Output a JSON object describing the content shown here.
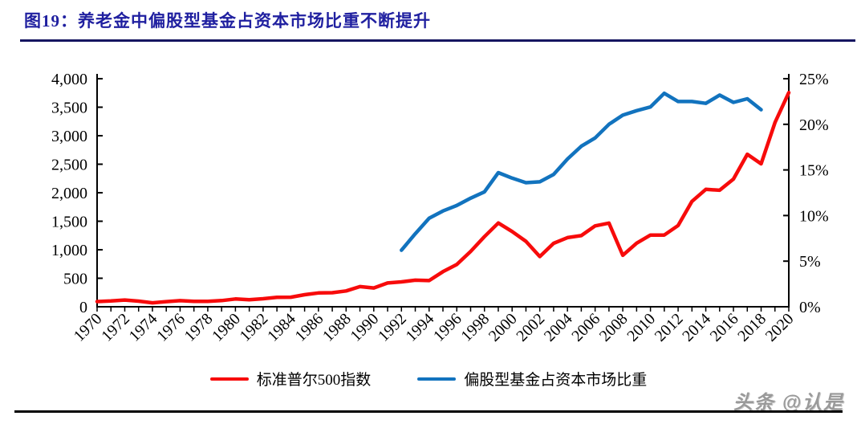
{
  "header": {
    "title": "图19：养老金中偏股型基金占资本市场比重不断提升"
  },
  "watermark": "头条 @认是",
  "colors": {
    "sp500_line": "#F70B0B",
    "ratio_line": "#1273BE",
    "title_text": "#2020A0",
    "title_rule": "#151560",
    "axis": "#000000",
    "watermark": "#9A9A9A"
  },
  "chart_data": {
    "type": "line",
    "title": "",
    "xlabel": "",
    "ylabel_left": "",
    "ylabel_right": "",
    "grid": false,
    "legend_position": "bottom",
    "x_range": [
      1970,
      2020
    ],
    "x_tick_labels": [
      "1970",
      "1972",
      "1974",
      "1976",
      "1978",
      "1980",
      "1982",
      "1984",
      "1986",
      "1988",
      "1990",
      "1992",
      "1994",
      "1996",
      "1998",
      "2000",
      "2002",
      "2004",
      "2006",
      "2008",
      "2010",
      "2012",
      "2014",
      "2016",
      "2018",
      "2020"
    ],
    "left_axis": {
      "min": 0,
      "max": 4000,
      "step": 500,
      "tick_labels": [
        "0",
        "500",
        "1,000",
        "1,500",
        "2,000",
        "2,500",
        "3,000",
        "3,500",
        "4,000"
      ]
    },
    "right_axis": {
      "min": 0,
      "max": 25,
      "step": 5,
      "tick_labels": [
        "0%",
        "5%",
        "10%",
        "15%",
        "20%",
        "25%"
      ]
    },
    "series": [
      {
        "name": "标准普尔500指数",
        "axis": "left",
        "color": "#F70B0B",
        "x": [
          1970,
          1971,
          1972,
          1973,
          1974,
          1975,
          1976,
          1977,
          1978,
          1979,
          1980,
          1981,
          1982,
          1983,
          1984,
          1985,
          1986,
          1987,
          1988,
          1989,
          1990,
          1991,
          1992,
          1993,
          1994,
          1995,
          1996,
          1997,
          1998,
          1999,
          2000,
          2001,
          2002,
          2003,
          2004,
          2005,
          2006,
          2007,
          2008,
          2009,
          2010,
          2011,
          2012,
          2013,
          2014,
          2015,
          2016,
          2017,
          2018,
          2019,
          2020
        ],
        "values": [
          92,
          102,
          118,
          98,
          69,
          90,
          107,
          95,
          96,
          108,
          136,
          123,
          141,
          165,
          167,
          211,
          242,
          247,
          278,
          353,
          330,
          417,
          436,
          466,
          459,
          616,
          741,
          970,
          1229,
          1469,
          1320,
          1148,
          880,
          1112,
          1212,
          1248,
          1418,
          1468,
          903,
          1115,
          1258,
          1258,
          1426,
          1848,
          2059,
          2044,
          2239,
          2674,
          2507,
          3231,
          3756
        ]
      },
      {
        "name": "偏股型基金占资本市场比重",
        "axis": "right",
        "color": "#1273BE",
        "x": [
          1992,
          1993,
          1994,
          1995,
          1996,
          1997,
          1998,
          1999,
          2000,
          2001,
          2002,
          2003,
          2004,
          2005,
          2006,
          2007,
          2008,
          2009,
          2010,
          2011,
          2012,
          2013,
          2014,
          2015,
          2016,
          2017,
          2018
        ],
        "values": [
          6.2,
          8.0,
          9.7,
          10.5,
          11.1,
          11.9,
          12.6,
          14.7,
          14.1,
          13.6,
          13.7,
          14.5,
          16.2,
          17.6,
          18.5,
          20.0,
          21.0,
          21.5,
          21.9,
          23.4,
          22.5,
          22.5,
          22.3,
          23.2,
          22.4,
          22.8,
          21.6
        ]
      }
    ]
  }
}
